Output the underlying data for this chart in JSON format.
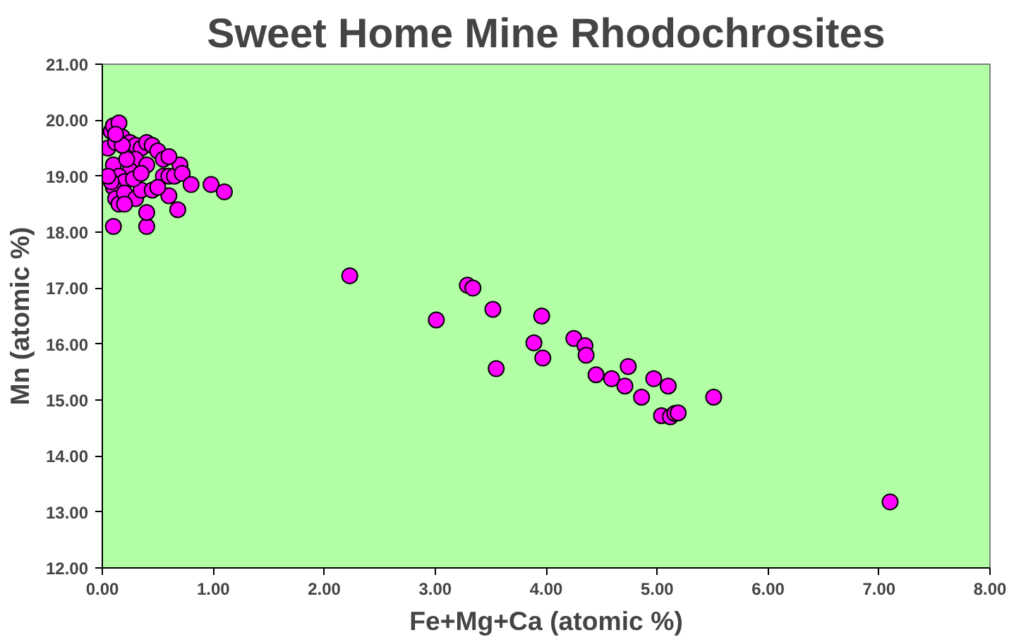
{
  "chart_data": {
    "type": "scatter",
    "title": "Sweet Home Mine Rhodochrosites",
    "xlabel": "Fe+Mg+Ca (atomic %)",
    "ylabel": "Mn (atomic %)",
    "xlim": [
      0,
      8
    ],
    "ylim": [
      12,
      21
    ],
    "xticks": [
      {
        "value": 0,
        "label": "0.00"
      },
      {
        "value": 1,
        "label": "1.00"
      },
      {
        "value": 2,
        "label": "2.00"
      },
      {
        "value": 3,
        "label": "3.00"
      },
      {
        "value": 4,
        "label": "4.00"
      },
      {
        "value": 5,
        "label": "5.00"
      },
      {
        "value": 6,
        "label": "6.00"
      },
      {
        "value": 7,
        "label": "7.00"
      },
      {
        "value": 8,
        "label": "8.00"
      }
    ],
    "yticks": [
      {
        "value": 12,
        "label": "12.00"
      },
      {
        "value": 13,
        "label": "13.00"
      },
      {
        "value": 14,
        "label": "14.00"
      },
      {
        "value": 15,
        "label": "15.00"
      },
      {
        "value": 16,
        "label": "16.00"
      },
      {
        "value": 17,
        "label": "17.00"
      },
      {
        "value": 18,
        "label": "18.00"
      },
      {
        "value": 19,
        "label": "19.00"
      },
      {
        "value": 20,
        "label": "20.00"
      },
      {
        "value": 21,
        "label": "21.00"
      }
    ],
    "grid": false,
    "marker": "circle",
    "series": [
      {
        "color": "#ff00ff",
        "x": [
          0.05,
          0.08,
          0.1,
          0.15,
          0.12,
          0.18,
          0.25,
          0.3,
          0.35,
          0.4,
          0.45,
          0.5,
          0.55,
          0.3,
          0.4,
          0.25,
          0.1,
          0.15,
          0.2,
          0.1,
          0.12,
          0.15,
          0.2,
          0.3,
          0.1,
          0.4,
          0.4,
          0.35,
          0.45,
          0.55,
          0.6,
          0.65,
          0.7,
          0.72,
          0.8,
          0.98,
          1.1,
          0.6,
          0.68,
          0.5,
          0.22,
          0.08,
          0.05,
          0.28,
          0.18,
          0.6,
          0.35,
          0.12,
          0.2,
          2.23,
          3.01,
          3.29,
          3.34,
          3.52,
          3.55,
          3.89,
          3.96,
          3.97,
          4.25,
          4.35,
          4.36,
          4.45,
          4.59,
          4.71,
          4.74,
          4.86,
          4.97,
          5.04,
          5.1,
          5.12,
          5.16,
          5.19,
          5.51,
          7.1
        ],
        "values": [
          19.5,
          19.8,
          19.9,
          19.95,
          19.6,
          19.7,
          19.6,
          19.55,
          19.5,
          19.6,
          19.55,
          19.45,
          19.3,
          19.3,
          19.2,
          19.1,
          19.2,
          19.0,
          18.9,
          18.8,
          18.6,
          18.5,
          18.7,
          18.6,
          18.1,
          18.1,
          18.35,
          18.75,
          18.75,
          19.0,
          19.0,
          19.0,
          19.2,
          19.05,
          18.85,
          18.85,
          18.72,
          18.65,
          18.4,
          18.8,
          19.3,
          18.9,
          19.0,
          18.95,
          19.55,
          19.35,
          19.05,
          19.75,
          18.5,
          17.22,
          16.43,
          17.05,
          17.0,
          16.62,
          15.56,
          16.02,
          16.5,
          15.75,
          16.1,
          15.97,
          15.8,
          15.45,
          15.38,
          15.25,
          15.6,
          15.05,
          15.38,
          14.72,
          15.25,
          14.7,
          14.76,
          14.77,
          15.05,
          13.18
        ]
      }
    ]
  }
}
